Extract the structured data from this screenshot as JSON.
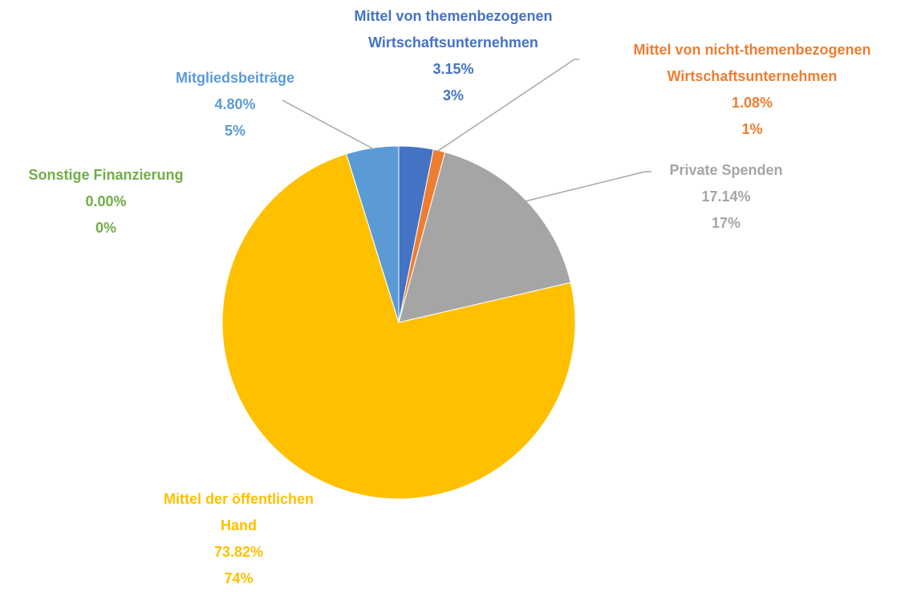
{
  "chart_data": {
    "type": "pie",
    "categories": [
      "Mittel von themenbezogenen Wirtschaftsunternehmen",
      "Mittel von nicht-themenbezogenen Wirtschaftsunternehmen",
      "Private Spenden",
      "Mittel der öffentlichen Hand",
      "Sonstige Finanzierung",
      "Mitgliedsbeiträge"
    ],
    "values": [
      3.15,
      1.08,
      17.14,
      73.82,
      0.0,
      4.8
    ],
    "value_labels": [
      "3.15%",
      "1.08%",
      "17.14%",
      "73.82%",
      "0.00%",
      "4.80%"
    ],
    "percent_labels": [
      "3%",
      "1%",
      "17%",
      "74%",
      "0%",
      "5%"
    ],
    "colors": [
      "#4472c4",
      "#ed7d31",
      "#a5a5a5",
      "#ffc000",
      "#70ad47",
      "#5b9bd5"
    ]
  }
}
